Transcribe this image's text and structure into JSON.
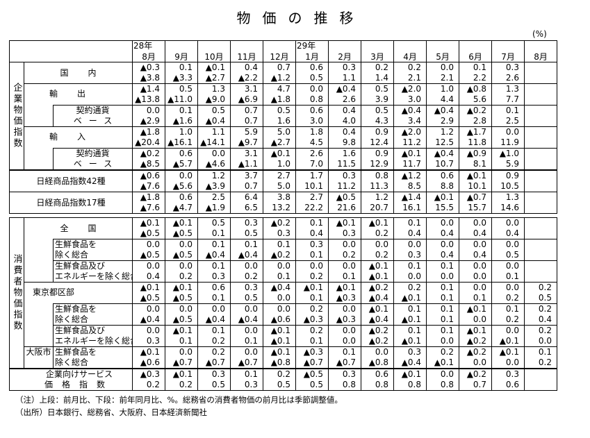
{
  "title": "物価の推移",
  "unit": "(%)",
  "header": {
    "years": [
      "28年",
      "29年"
    ],
    "months": [
      "8月",
      "9月",
      "10月",
      "11月",
      "12月",
      "1月",
      "2月",
      "3月",
      "4月",
      "5月",
      "6月",
      "7月",
      "8月"
    ]
  },
  "cgpi": {
    "label": "企業物価指数",
    "rows": [
      {
        "label": "国内",
        "top": [
          "▲0.3",
          "0.1",
          "▲0.1",
          "0.4",
          "0.7",
          "0.6",
          "0.3",
          "0.2",
          "0.2",
          "0.0",
          "0.1",
          "0.3",
          ""
        ],
        "bottom": [
          "▲3.8",
          "▲3.3",
          "▲2.7",
          "▲2.2",
          "▲1.2",
          "0.5",
          "1.1",
          "1.4",
          "2.1",
          "2.1",
          "2.2",
          "2.6",
          ""
        ]
      },
      {
        "label": "輸出",
        "top": [
          "▲1.4",
          "0.5",
          "1.3",
          "3.1",
          "4.7",
          "0.0",
          "▲0.4",
          "0.5",
          "▲2.0",
          "1.0",
          "▲0.8",
          "1.3",
          ""
        ],
        "bottom": [
          "▲13.8",
          "▲11.0",
          "▲9.0",
          "▲6.9",
          "▲1.8",
          "0.8",
          "2.6",
          "3.9",
          "3.0",
          "4.4",
          "5.6",
          "7.7",
          ""
        ]
      },
      {
        "label1": "契約通貨",
        "label2": "ベース",
        "top": [
          "0.0",
          "0.1",
          "0.5",
          "0.7",
          "0.5",
          "0.6",
          "0.4",
          "0.5",
          "▲0.4",
          "▲0.4",
          "▲0.2",
          "0.1",
          ""
        ],
        "bottom": [
          "▲2.9",
          "▲1.6",
          "▲0.4",
          "0.7",
          "1.6",
          "3.0",
          "4.0",
          "4.3",
          "3.4",
          "2.9",
          "2.8",
          "2.5",
          ""
        ]
      },
      {
        "label": "輸入",
        "top": [
          "▲1.8",
          "1.0",
          "1.1",
          "5.9",
          "5.0",
          "1.8",
          "0.4",
          "0.9",
          "▲2.0",
          "1.2",
          "▲1.7",
          "0.0",
          ""
        ],
        "bottom": [
          "▲20.4",
          "▲16.1",
          "▲14.1",
          "▲9.7",
          "▲2.7",
          "4.5",
          "9.8",
          "12.4",
          "11.2",
          "12.5",
          "11.8",
          "11.9",
          ""
        ]
      },
      {
        "label1": "契約通貨",
        "label2": "ベース",
        "top": [
          "▲0.2",
          "0.6",
          "0.0",
          "3.1",
          "▲0.1",
          "2.6",
          "1.6",
          "0.9",
          "▲0.1",
          "▲0.4",
          "▲0.9",
          "▲1.0",
          ""
        ],
        "bottom": [
          "▲8.5",
          "▲5.7",
          "▲4.6",
          "▲1.1",
          "1.0",
          "7.0",
          "11.5",
          "12.9",
          "11.7",
          "10.7",
          "8.1",
          "5.9",
          ""
        ]
      }
    ]
  },
  "nikkei": {
    "rows": [
      {
        "label": "日経商品指数42種",
        "top": [
          "▲0.6",
          "0.0",
          "1.2",
          "3.7",
          "2.7",
          "1.7",
          "0.3",
          "0.8",
          "▲1.2",
          "0.6",
          "▲0.1",
          "0.9",
          ""
        ],
        "bottom": [
          "▲7.6",
          "▲5.6",
          "▲3.9",
          "0.7",
          "5.0",
          "10.1",
          "11.2",
          "11.3",
          "8.5",
          "8.8",
          "10.1",
          "10.5",
          ""
        ]
      },
      {
        "label": "日経商品指数17種",
        "top": [
          "▲1.8",
          "0.6",
          "2.5",
          "6.4",
          "3.8",
          "2.7",
          "▲0.5",
          "1.2",
          "▲1.4",
          "▲0.1",
          "▲0.7",
          "1.3",
          ""
        ],
        "bottom": [
          "▲7.6",
          "▲4.7",
          "▲1.9",
          "6.5",
          "13.2",
          "22.2",
          "21.6",
          "20.7",
          "16.1",
          "15.5",
          "15.7",
          "14.6",
          ""
        ]
      }
    ]
  },
  "cpi": {
    "label": "消費者物価指数",
    "rows": [
      {
        "label": "全国",
        "top": [
          "▲0.1",
          "▲0.1",
          "0.5",
          "0.3",
          "▲0.2",
          "0.1",
          "▲0.1",
          "▲0.1",
          "0.1",
          "0.0",
          "0.0",
          "0.0",
          ""
        ],
        "bottom": [
          "▲0.5",
          "▲0.5",
          "0.1",
          "0.5",
          "0.3",
          "0.4",
          "0.3",
          "0.2",
          "0.4",
          "0.4",
          "0.4",
          "0.4",
          ""
        ]
      },
      {
        "label1": "生鮮食品を",
        "label2": "除く総合",
        "top": [
          "0.0",
          "0.0",
          "0.1",
          "0.1",
          "0.1",
          "0.3",
          "0.0",
          "0.0",
          "0.0",
          "0.0",
          "0.0",
          "0.0",
          ""
        ],
        "bottom": [
          "▲0.5",
          "▲0.5",
          "▲0.4",
          "▲0.4",
          "▲0.2",
          "0.1",
          "0.2",
          "0.2",
          "0.3",
          "0.4",
          "0.4",
          "0.5",
          ""
        ]
      },
      {
        "label1": "生鮮食品及び",
        "label2": "エネルギーを除く総合",
        "top": [
          "0.0",
          "0.0",
          "0.1",
          "0.0",
          "0.0",
          "0.0",
          "0.0",
          "▲0.1",
          "0.1",
          "0.1",
          "0.0",
          "0.0",
          ""
        ],
        "bottom": [
          "0.4",
          "0.2",
          "0.3",
          "0.2",
          "0.1",
          "0.2",
          "0.1",
          "▲0.1",
          "0.0",
          "0.0",
          "0.0",
          "0.1",
          ""
        ]
      },
      {
        "label": "東京都区部",
        "top": [
          "▲0.1",
          "▲0.1",
          "0.6",
          "0.3",
          "▲0.4",
          "▲0.1",
          "▲0.1",
          "▲0.2",
          "0.2",
          "0.1",
          "0.0",
          "0.0",
          "0.2"
        ],
        "bottom": [
          "▲0.5",
          "▲0.5",
          "0.1",
          "0.5",
          "0.0",
          "0.1",
          "▲0.3",
          "▲0.4",
          "▲0.1",
          "0.1",
          "0.1",
          "0.2",
          "0.5"
        ]
      },
      {
        "label1": "生鮮食品を",
        "label2": "除く総合",
        "top": [
          "0.0",
          "0.0",
          "0.0",
          "0.0",
          "0.0",
          "0.2",
          "0.0",
          "▲0.1",
          "0.1",
          "0.1",
          "▲0.1",
          "0.1",
          "0.2"
        ],
        "bottom": [
          "▲0.4",
          "▲0.5",
          "▲0.4",
          "▲0.4",
          "▲0.6",
          "▲0.3",
          "▲0.3",
          "▲0.4",
          "▲0.1",
          "0.1",
          "0.0",
          "0.2",
          "0.4"
        ]
      },
      {
        "label1": "生鮮食品及び",
        "label2": "エネルギーを除く総合",
        "top": [
          "0.0",
          "▲0.1",
          "0.1",
          "0.0",
          "▲0.1",
          "0.2",
          "0.0",
          "▲0.2",
          "0.1",
          "0.1",
          "▲0.1",
          "0.0",
          "0.2"
        ],
        "bottom": [
          "0.3",
          "0.1",
          "0.2",
          "0.1",
          "▲0.1",
          "0.1",
          "0.0",
          "▲0.2",
          "▲0.1",
          "0.0",
          "▲0.2",
          "▲0.1",
          "0.0"
        ]
      },
      {
        "region": "大阪市",
        "label1": "生鮮食品を",
        "label2": "除く総合",
        "top": [
          "▲0.1",
          "0.0",
          "0.2",
          "0.0",
          "▲0.1",
          "▲0.3",
          "0.1",
          "0.0",
          "0.3",
          "0.2",
          "▲0.2",
          "▲0.1",
          "0.1"
        ],
        "bottom": [
          "▲0.6",
          "▲0.7",
          "▲0.7",
          "▲0.7",
          "▲0.8",
          "▲0.7",
          "▲0.7",
          "▲0.8",
          "▲0.4",
          "▲0.1",
          "0.0",
          "0.0",
          "0.2"
        ]
      }
    ]
  },
  "sppi": {
    "rows": [
      {
        "label1": "企業向けサービス",
        "label2": "価格指数",
        "top": [
          "▲0.3",
          "▲0.1",
          "0.3",
          "0.1",
          "0.2",
          "▲0.5",
          "0.3",
          "0.6",
          "▲0.1",
          "0.0",
          "▲0.2",
          "0.3",
          ""
        ],
        "bottom": [
          "0.2",
          "0.2",
          "0.5",
          "0.3",
          "0.5",
          "0.5",
          "0.8",
          "0.8",
          "0.8",
          "0.8",
          "0.7",
          "0.6",
          ""
        ]
      }
    ]
  },
  "notes": {
    "note": "（注）上段：前月比、下段：前年同月比、%。総務省の消費者物価の前月比は季節調整値。",
    "source": "（出所）日本銀行、総務省、大阪府、日本経済新聞社"
  }
}
